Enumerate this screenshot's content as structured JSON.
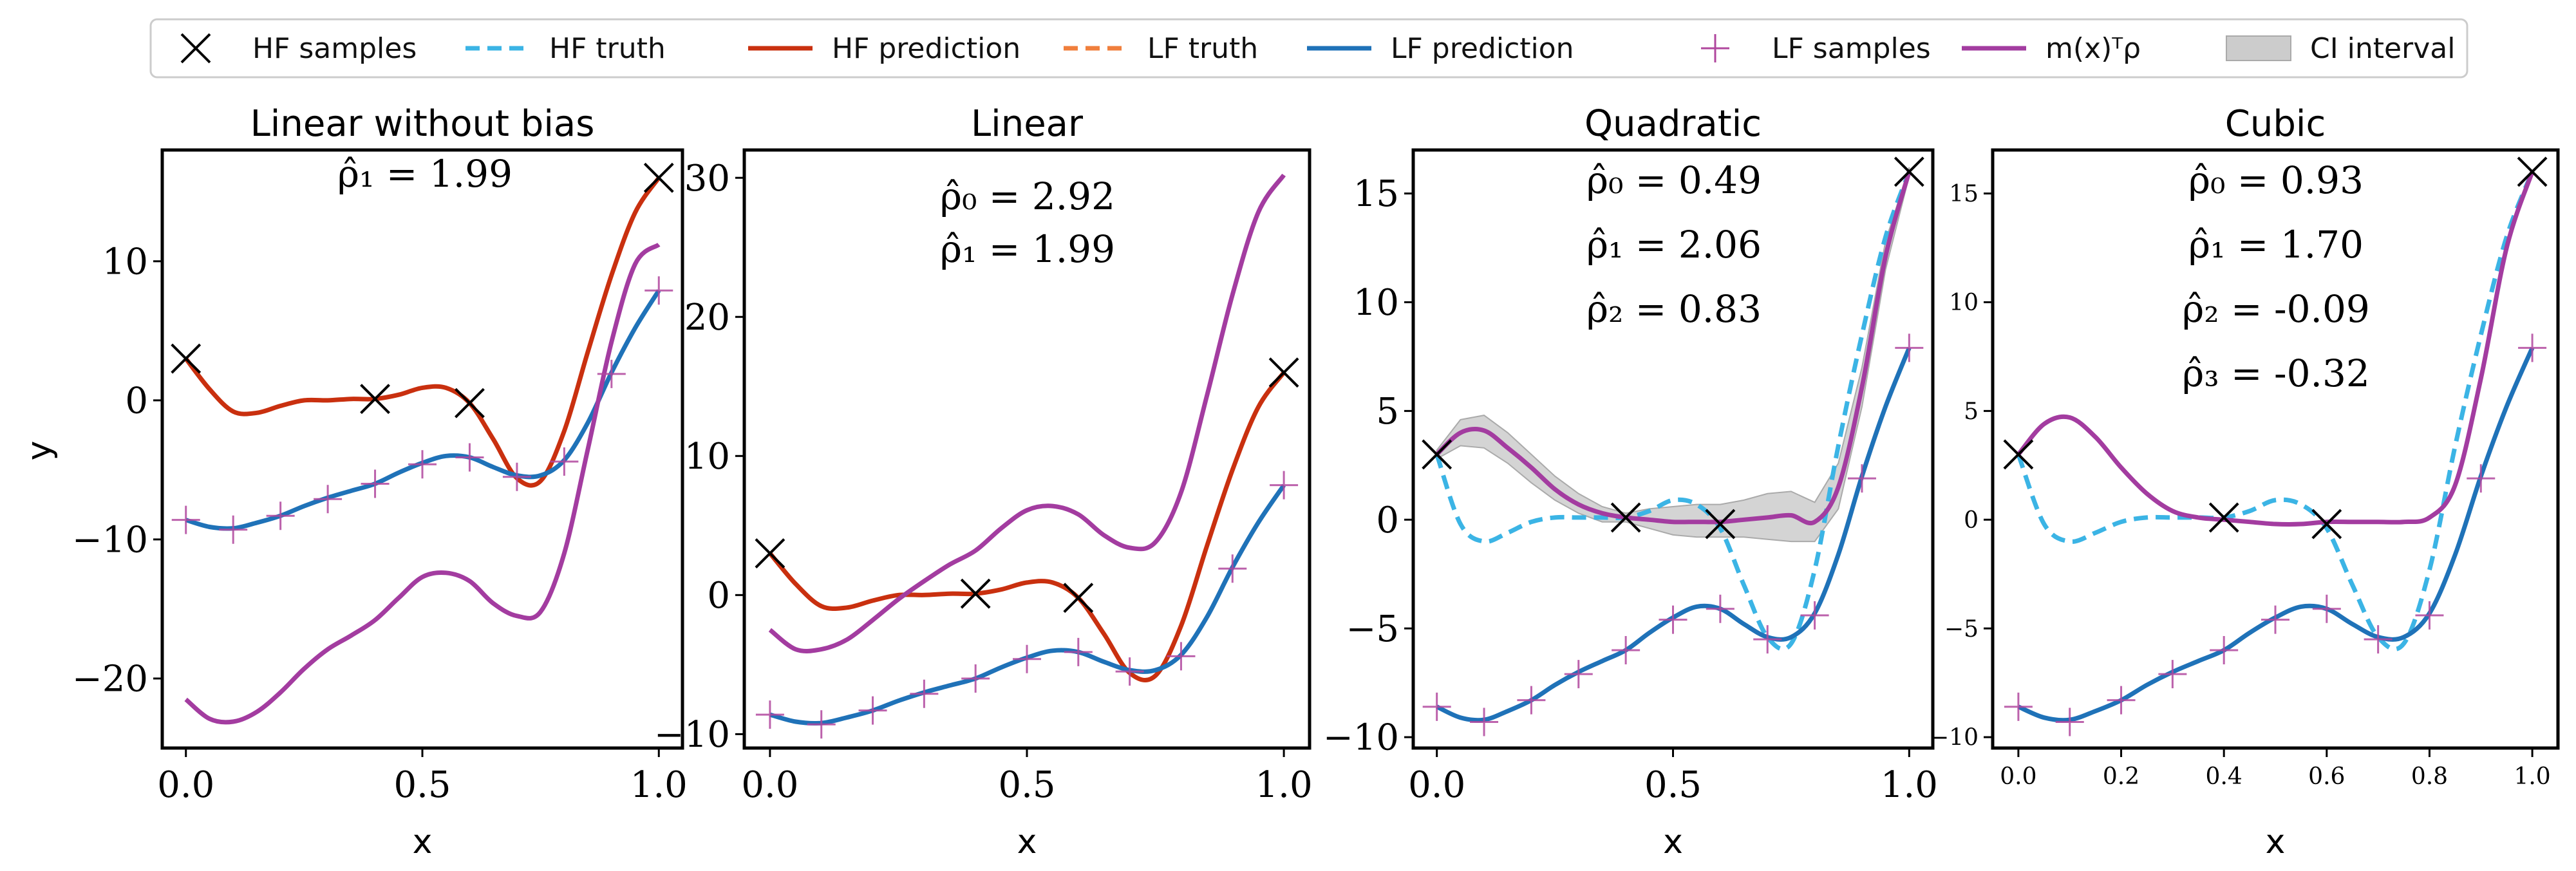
{
  "legend": {
    "placement": "top-center",
    "items": [
      {
        "key": "hf_samples",
        "label": "HF samples",
        "marker": "x-marker",
        "color": "#000000"
      },
      {
        "key": "hf_truth",
        "label": "HF truth",
        "marker": "dashed-line",
        "color": "#3bb4e5"
      },
      {
        "key": "hf_prediction",
        "label": "HF prediction",
        "marker": "solid-line",
        "color": "#c9300f"
      },
      {
        "key": "lf_truth",
        "label": "LF truth",
        "marker": "dashed-line",
        "color": "#f07f3c"
      },
      {
        "key": "lf_prediction",
        "label": "LF prediction",
        "marker": "solid-line",
        "color": "#1f72b8"
      },
      {
        "key": "lf_samples",
        "label": "LF samples",
        "marker": "plus-marker",
        "color": "#b0479e"
      },
      {
        "key": "m_rho",
        "label": "m(x)ᵀρ",
        "marker": "solid-line",
        "color": "#a33ca0"
      },
      {
        "key": "ci",
        "label": "CI interval",
        "marker": "band",
        "color": "#cccccc"
      }
    ]
  },
  "chart_data": [
    {
      "type": "line",
      "title": "Linear without bias",
      "xlabel": "x",
      "ylabel": "y",
      "xlim": [
        -0.05,
        1.05
      ],
      "ylim": [
        -25,
        18
      ],
      "xticks": [
        0.0,
        0.5,
        1.0
      ],
      "xtick_labels": [
        "0.0",
        "0.5",
        "1.0"
      ],
      "yticks": [
        -20,
        -10,
        0,
        10
      ],
      "ytick_labels": [
        "−20",
        "−10",
        "0",
        "10"
      ],
      "grid": false,
      "annotations": [
        "ρ̂₁ = 1.99"
      ],
      "series": [
        {
          "key": "hf_prediction",
          "x": [
            0,
            0.05,
            0.1,
            0.15,
            0.2,
            0.25,
            0.3,
            0.35,
            0.4,
            0.45,
            0.5,
            0.55,
            0.6,
            0.65,
            0.7,
            0.75,
            0.8,
            0.85,
            0.9,
            0.95,
            1.0
          ],
          "y": [
            3.0,
            0.8,
            -0.8,
            -0.9,
            -0.4,
            0.0,
            0.0,
            0.1,
            0.1,
            0.4,
            0.9,
            0.9,
            -0.2,
            -2.8,
            -5.6,
            -5.8,
            -2.2,
            3.5,
            9.0,
            13.5,
            16.0
          ]
        },
        {
          "key": "lf_prediction",
          "x": [
            0,
            0.05,
            0.1,
            0.15,
            0.2,
            0.25,
            0.3,
            0.35,
            0.4,
            0.45,
            0.5,
            0.55,
            0.6,
            0.65,
            0.7,
            0.75,
            0.8,
            0.85,
            0.9,
            0.95,
            1.0
          ],
          "y": [
            -8.6,
            -9.1,
            -9.2,
            -8.8,
            -8.3,
            -7.6,
            -7.0,
            -6.5,
            -6.0,
            -5.2,
            -4.5,
            -4.0,
            -4.1,
            -4.8,
            -5.4,
            -5.4,
            -4.3,
            -1.6,
            2.0,
            5.2,
            7.9
          ]
        },
        {
          "key": "m_rho",
          "x": [
            0,
            0.05,
            0.1,
            0.15,
            0.2,
            0.25,
            0.3,
            0.35,
            0.4,
            0.45,
            0.5,
            0.55,
            0.6,
            0.65,
            0.7,
            0.75,
            0.8,
            0.85,
            0.9,
            0.95,
            1.0
          ],
          "y": [
            -21.5,
            -22.9,
            -23.1,
            -22.4,
            -21.0,
            -19.3,
            -17.9,
            -16.9,
            -15.8,
            -14.2,
            -12.7,
            -12.4,
            -13.0,
            -14.6,
            -15.5,
            -15.2,
            -11.0,
            -3.5,
            4.2,
            9.8,
            11.2
          ]
        },
        {
          "key": "hf_samples",
          "x": [
            0.0,
            0.4,
            0.6,
            1.0
          ],
          "y": [
            3.0,
            0.1,
            -0.2,
            16.0
          ]
        },
        {
          "key": "lf_samples",
          "x": [
            0.0,
            0.1,
            0.2,
            0.3,
            0.4,
            0.5,
            0.6,
            0.7,
            0.8,
            0.9,
            1.0
          ],
          "y": [
            -8.6,
            -9.3,
            -8.3,
            -7.1,
            -6.0,
            -4.6,
            -4.1,
            -5.5,
            -4.4,
            1.9,
            7.9
          ]
        }
      ]
    },
    {
      "type": "line",
      "title": "Linear",
      "xlabel": "x",
      "ylabel": "",
      "xlim": [
        -0.05,
        1.05
      ],
      "ylim": [
        -11,
        32
      ],
      "xticks": [
        0.0,
        0.5,
        1.0
      ],
      "xtick_labels": [
        "0.0",
        "0.5",
        "1.0"
      ],
      "yticks": [
        -10,
        0,
        10,
        20,
        30
      ],
      "ytick_labels": [
        "−10",
        "0",
        "10",
        "20",
        "30"
      ],
      "grid": false,
      "annotations": [
        "ρ̂₀ = 2.92",
        "ρ̂₁ = 1.99"
      ],
      "series": [
        {
          "key": "hf_prediction",
          "x": [
            0,
            0.05,
            0.1,
            0.15,
            0.2,
            0.25,
            0.3,
            0.35,
            0.4,
            0.45,
            0.5,
            0.55,
            0.6,
            0.65,
            0.7,
            0.75,
            0.8,
            0.85,
            0.9,
            0.95,
            1.0
          ],
          "y": [
            3.0,
            0.8,
            -0.8,
            -0.9,
            -0.4,
            0.0,
            0.0,
            0.1,
            0.1,
            0.4,
            0.9,
            0.9,
            -0.2,
            -2.8,
            -5.6,
            -5.8,
            -2.2,
            3.5,
            9.0,
            13.5,
            16.0
          ]
        },
        {
          "key": "lf_prediction",
          "x": [
            0,
            0.05,
            0.1,
            0.15,
            0.2,
            0.25,
            0.3,
            0.35,
            0.4,
            0.45,
            0.5,
            0.55,
            0.6,
            0.65,
            0.7,
            0.75,
            0.8,
            0.85,
            0.9,
            0.95,
            1.0
          ],
          "y": [
            -8.6,
            -9.1,
            -9.2,
            -8.8,
            -8.3,
            -7.6,
            -7.0,
            -6.5,
            -6.0,
            -5.2,
            -4.5,
            -4.0,
            -4.1,
            -4.8,
            -5.4,
            -5.4,
            -4.3,
            -1.6,
            2.0,
            5.2,
            7.9
          ]
        },
        {
          "key": "m_rho",
          "x": [
            0,
            0.05,
            0.1,
            0.15,
            0.2,
            0.25,
            0.3,
            0.35,
            0.4,
            0.45,
            0.5,
            0.55,
            0.6,
            0.65,
            0.7,
            0.75,
            0.8,
            0.85,
            0.9,
            0.95,
            1.0
          ],
          "y": [
            -2.5,
            -3.9,
            -3.9,
            -3.2,
            -1.8,
            -0.3,
            1.0,
            2.2,
            3.2,
            4.8,
            6.1,
            6.4,
            5.8,
            4.3,
            3.4,
            3.8,
            7.4,
            14.3,
            21.6,
            27.5,
            30.2
          ]
        },
        {
          "key": "hf_samples",
          "x": [
            0.0,
            0.4,
            0.6,
            1.0
          ],
          "y": [
            3.0,
            0.1,
            -0.2,
            16.0
          ]
        },
        {
          "key": "lf_samples",
          "x": [
            0.0,
            0.1,
            0.2,
            0.3,
            0.4,
            0.5,
            0.6,
            0.7,
            0.8,
            0.9,
            1.0
          ],
          "y": [
            -8.6,
            -9.3,
            -8.3,
            -7.1,
            -6.0,
            -4.6,
            -4.1,
            -5.5,
            -4.4,
            1.9,
            7.9
          ]
        }
      ]
    },
    {
      "type": "line",
      "title": "Quadratic",
      "xlabel": "x",
      "ylabel": "",
      "xlim": [
        -0.05,
        1.05
      ],
      "ylim": [
        -10.5,
        17
      ],
      "xticks": [
        0.0,
        0.5,
        1.0
      ],
      "xtick_labels": [
        "0.0",
        "0.5",
        "1.0"
      ],
      "yticks": [
        -10,
        -5,
        0,
        5,
        10,
        15
      ],
      "ytick_labels": [
        "−10",
        "−5",
        "0",
        "5",
        "10",
        "15"
      ],
      "grid": false,
      "annotations": [
        "ρ̂₀ = 0.49",
        "ρ̂₁ = 2.06",
        "ρ̂₂ = 0.83"
      ],
      "series": [
        {
          "key": "ci",
          "x": [
            0,
            0.05,
            0.1,
            0.15,
            0.2,
            0.25,
            0.3,
            0.35,
            0.4,
            0.45,
            0.5,
            0.55,
            0.6,
            0.65,
            0.7,
            0.75,
            0.8,
            0.85,
            0.9,
            0.95,
            1.0
          ],
          "lower": [
            2.8,
            3.4,
            3.3,
            2.6,
            1.7,
            0.9,
            0.3,
            -0.1,
            -0.1,
            -0.4,
            -0.7,
            -0.8,
            -0.8,
            -0.8,
            -0.9,
            -1.0,
            -1.0,
            0.5,
            5.2,
            11.5,
            15.8
          ],
          "upper": [
            3.2,
            4.6,
            4.8,
            4.0,
            3.0,
            2.0,
            1.2,
            0.6,
            0.3,
            0.5,
            0.6,
            0.7,
            0.7,
            0.9,
            1.2,
            1.3,
            0.8,
            2.6,
            7.0,
            12.8,
            16.2
          ]
        },
        {
          "key": "hf_truth",
          "x": [
            0,
            0.05,
            0.1,
            0.15,
            0.2,
            0.25,
            0.3,
            0.35,
            0.4,
            0.45,
            0.5,
            0.55,
            0.6,
            0.65,
            0.7,
            0.75,
            0.8,
            0.85,
            0.9,
            0.95,
            1.0
          ],
          "y": [
            3.0,
            -0.2,
            -1.0,
            -0.6,
            -0.1,
            0.1,
            0.1,
            0.1,
            0.1,
            0.4,
            0.9,
            0.7,
            -0.4,
            -3.0,
            -5.4,
            -5.7,
            -2.3,
            3.4,
            8.5,
            13.0,
            16.0
          ]
        },
        {
          "key": "lf_prediction",
          "x": [
            0,
            0.05,
            0.1,
            0.15,
            0.2,
            0.25,
            0.3,
            0.35,
            0.4,
            0.45,
            0.5,
            0.55,
            0.6,
            0.65,
            0.7,
            0.75,
            0.8,
            0.85,
            0.9,
            0.95,
            1.0
          ],
          "y": [
            -8.6,
            -9.1,
            -9.2,
            -8.8,
            -8.3,
            -7.6,
            -7.0,
            -6.5,
            -6.0,
            -5.2,
            -4.5,
            -4.0,
            -4.1,
            -4.8,
            -5.4,
            -5.4,
            -4.3,
            -1.6,
            2.0,
            5.2,
            7.9
          ]
        },
        {
          "key": "m_rho",
          "x": [
            0,
            0.05,
            0.1,
            0.15,
            0.2,
            0.25,
            0.3,
            0.35,
            0.4,
            0.45,
            0.5,
            0.55,
            0.6,
            0.65,
            0.7,
            0.75,
            0.8,
            0.85,
            0.9,
            0.95,
            1.0
          ],
          "y": [
            3.0,
            4.0,
            4.1,
            3.3,
            2.4,
            1.4,
            0.7,
            0.3,
            0.1,
            0.0,
            -0.1,
            -0.1,
            -0.1,
            0.0,
            0.1,
            0.2,
            -0.1,
            1.5,
            6.1,
            12.1,
            16.0
          ]
        },
        {
          "key": "hf_samples",
          "x": [
            0.0,
            0.4,
            0.6,
            1.0
          ],
          "y": [
            3.0,
            0.1,
            -0.2,
            16.0
          ]
        },
        {
          "key": "lf_samples",
          "x": [
            0.0,
            0.1,
            0.2,
            0.3,
            0.4,
            0.5,
            0.6,
            0.7,
            0.8,
            0.9,
            1.0
          ],
          "y": [
            -8.6,
            -9.3,
            -8.3,
            -7.1,
            -6.0,
            -4.6,
            -4.1,
            -5.5,
            -4.4,
            1.9,
            7.9
          ]
        }
      ]
    },
    {
      "type": "line",
      "title": "Cubic",
      "xlabel": "x",
      "ylabel": "",
      "xlim": [
        -0.05,
        1.05
      ],
      "ylim": [
        -10.5,
        17
      ],
      "xticks": [
        0.0,
        0.2,
        0.4,
        0.6,
        0.8,
        1.0
      ],
      "xtick_labels": [
        "0.0",
        "0.2",
        "0.4",
        "0.6",
        "0.8",
        "1.0"
      ],
      "yticks": [
        -10,
        -5,
        0,
        5,
        10,
        15
      ],
      "ytick_labels": [
        "−10",
        "−5",
        "0",
        "5",
        "10",
        "15"
      ],
      "grid": false,
      "annotations": [
        "ρ̂₀ = 0.93",
        "ρ̂₁ = 1.70",
        "ρ̂₂ = -0.09",
        "ρ̂₃ = -0.32"
      ],
      "series": [
        {
          "key": "hf_truth",
          "x": [
            0,
            0.05,
            0.1,
            0.15,
            0.2,
            0.25,
            0.3,
            0.35,
            0.4,
            0.45,
            0.5,
            0.55,
            0.6,
            0.65,
            0.7,
            0.75,
            0.8,
            0.85,
            0.9,
            0.95,
            1.0
          ],
          "y": [
            3.0,
            -0.2,
            -1.0,
            -0.6,
            -0.1,
            0.1,
            0.1,
            0.1,
            0.1,
            0.4,
            0.9,
            0.7,
            -0.4,
            -3.0,
            -5.4,
            -5.7,
            -2.3,
            3.4,
            8.5,
            13.0,
            16.0
          ]
        },
        {
          "key": "lf_prediction",
          "x": [
            0,
            0.05,
            0.1,
            0.15,
            0.2,
            0.25,
            0.3,
            0.35,
            0.4,
            0.45,
            0.5,
            0.55,
            0.6,
            0.65,
            0.7,
            0.75,
            0.8,
            0.85,
            0.9,
            0.95,
            1.0
          ],
          "y": [
            -8.6,
            -9.1,
            -9.2,
            -8.8,
            -8.3,
            -7.6,
            -7.0,
            -6.5,
            -6.0,
            -5.2,
            -4.5,
            -4.0,
            -4.1,
            -4.8,
            -5.4,
            -5.4,
            -4.3,
            -1.6,
            2.0,
            5.2,
            7.9
          ]
        },
        {
          "key": "m_rho",
          "x": [
            0,
            0.05,
            0.1,
            0.15,
            0.2,
            0.25,
            0.3,
            0.35,
            0.4,
            0.45,
            0.5,
            0.55,
            0.6,
            0.65,
            0.7,
            0.75,
            0.8,
            0.85,
            0.9,
            0.95,
            1.0
          ],
          "y": [
            3.0,
            4.4,
            4.7,
            3.8,
            2.4,
            1.2,
            0.4,
            0.1,
            0.0,
            -0.1,
            -0.2,
            -0.2,
            -0.1,
            -0.1,
            -0.1,
            -0.1,
            0.1,
            1.6,
            6.5,
            12.5,
            16.0
          ]
        },
        {
          "key": "hf_samples",
          "x": [
            0.0,
            0.4,
            0.6,
            1.0
          ],
          "y": [
            3.0,
            0.1,
            -0.2,
            16.0
          ]
        },
        {
          "key": "lf_samples",
          "x": [
            0.0,
            0.1,
            0.2,
            0.3,
            0.4,
            0.5,
            0.6,
            0.7,
            0.8,
            0.9,
            1.0
          ],
          "y": [
            -8.6,
            -9.3,
            -8.3,
            -7.1,
            -6.0,
            -4.6,
            -4.1,
            -5.5,
            -4.4,
            1.9,
            7.9
          ]
        }
      ]
    }
  ]
}
